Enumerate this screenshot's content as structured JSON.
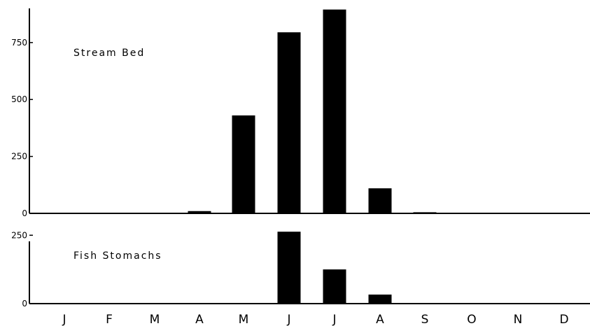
{
  "chart_data": [
    {
      "type": "bar",
      "title": "Stream Bed",
      "categories": [
        "J",
        "F",
        "M",
        "A",
        "M",
        "J",
        "J",
        "A",
        "S",
        "O",
        "N",
        "D"
      ],
      "values": [
        0,
        0,
        0,
        10,
        430,
        795,
        895,
        110,
        5,
        0,
        0,
        0
      ],
      "ylim": [
        0,
        900
      ],
      "yticks": [
        "0",
        "250",
        "500",
        "750"
      ],
      "xlabel": "",
      "ylabel": "",
      "grid": false
    },
    {
      "type": "bar",
      "title": "Fish Stomachs",
      "categories": [
        "J",
        "F",
        "M",
        "A",
        "M",
        "J",
        "J",
        "A",
        "S",
        "O",
        "N",
        "D"
      ],
      "values": [
        0,
        0,
        0,
        0,
        0,
        263,
        125,
        33,
        0,
        0,
        0,
        0
      ],
      "ylim": [
        0,
        330
      ],
      "yticks": [
        "0",
        "250"
      ],
      "xlabel": "",
      "ylabel": "",
      "grid": false
    }
  ]
}
